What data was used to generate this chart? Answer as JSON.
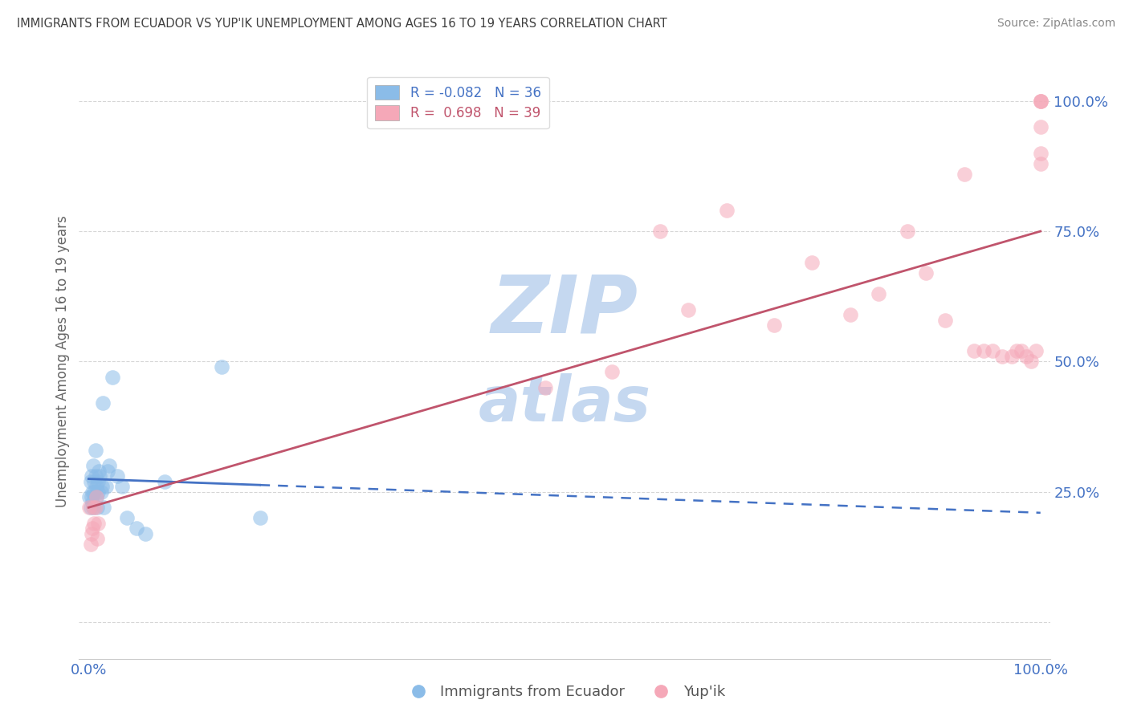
{
  "title": "IMMIGRANTS FROM ECUADOR VS YUP'IK UNEMPLOYMENT AMONG AGES 16 TO 19 YEARS CORRELATION CHART",
  "source": "Source: ZipAtlas.com",
  "ylabel": "Unemployment Among Ages 16 to 19 years",
  "legend_blue_R": "-0.082",
  "legend_blue_N": "36",
  "legend_pink_R": "0.698",
  "legend_pink_N": "39",
  "blue_scatter_x": [
    0.001,
    0.002,
    0.002,
    0.003,
    0.003,
    0.004,
    0.004,
    0.005,
    0.005,
    0.006,
    0.006,
    0.007,
    0.007,
    0.008,
    0.008,
    0.009,
    0.01,
    0.01,
    0.011,
    0.012,
    0.013,
    0.014,
    0.015,
    0.016,
    0.018,
    0.02,
    0.022,
    0.025,
    0.03,
    0.035,
    0.04,
    0.05,
    0.06,
    0.08,
    0.14,
    0.18
  ],
  "blue_scatter_y": [
    0.24,
    0.22,
    0.27,
    0.24,
    0.28,
    0.23,
    0.25,
    0.3,
    0.22,
    0.25,
    0.27,
    0.33,
    0.28,
    0.26,
    0.24,
    0.22,
    0.27,
    0.25,
    0.29,
    0.28,
    0.25,
    0.26,
    0.42,
    0.22,
    0.26,
    0.29,
    0.3,
    0.47,
    0.28,
    0.26,
    0.2,
    0.18,
    0.17,
    0.27,
    0.49,
    0.2
  ],
  "pink_scatter_x": [
    0.001,
    0.002,
    0.003,
    0.004,
    0.005,
    0.006,
    0.007,
    0.008,
    0.009,
    0.01,
    0.48,
    0.55,
    0.6,
    0.63,
    0.67,
    0.72,
    0.76,
    0.8,
    0.83,
    0.86,
    0.88,
    0.9,
    0.92,
    0.93,
    0.94,
    0.95,
    0.96,
    0.97,
    0.975,
    0.98,
    0.985,
    0.99,
    0.995,
    1.0,
    1.0,
    1.0,
    1.0,
    1.0,
    1.0
  ],
  "pink_scatter_y": [
    0.22,
    0.15,
    0.17,
    0.18,
    0.22,
    0.19,
    0.22,
    0.24,
    0.16,
    0.19,
    0.45,
    0.48,
    0.75,
    0.6,
    0.79,
    0.57,
    0.69,
    0.59,
    0.63,
    0.75,
    0.67,
    0.58,
    0.86,
    0.52,
    0.52,
    0.52,
    0.51,
    0.51,
    0.52,
    0.52,
    0.51,
    0.5,
    0.52,
    1.0,
    1.0,
    1.0,
    0.95,
    0.9,
    0.88
  ],
  "blue_color": "#8bbce8",
  "pink_color": "#f5a8b8",
  "blue_line_color": "#4472c4",
  "pink_line_color": "#c0546c",
  "axis_label_color": "#4472c4",
  "title_color": "#404040",
  "source_color": "#888888",
  "watermark_color": "#c5d8f0",
  "background_color": "#ffffff",
  "grid_color": "#cccccc",
  "xlim": [
    -0.01,
    1.01
  ],
  "ylim": [
    -0.07,
    1.07
  ],
  "yticks": [
    0.0,
    0.25,
    0.5,
    0.75,
    1.0
  ],
  "ytick_labels": [
    "",
    "25.0%",
    "50.0%",
    "75.0%",
    "100.0%"
  ],
  "xticks": [
    0.0,
    1.0
  ],
  "xtick_labels": [
    "0.0%",
    "100.0%"
  ]
}
